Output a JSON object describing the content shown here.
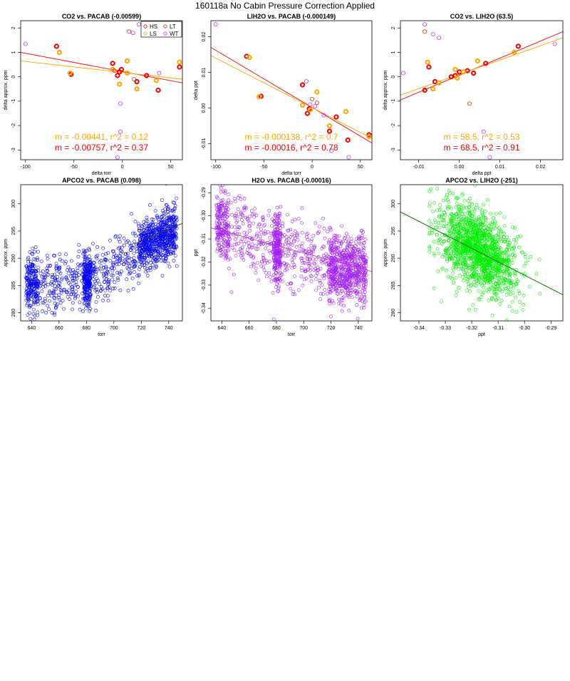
{
  "figure": {
    "title": "160118a   No Cabin Pressure Correction Applied"
  },
  "chart_data": [
    {
      "id": "p1",
      "type": "scatter",
      "title": "CO2 vs. PACAB (-0.00599)",
      "xlabel": "delta torr",
      "ylabel": "delta approx. ppm",
      "xlim": [
        -105,
        62
      ],
      "ylim": [
        -3.4,
        2.3
      ],
      "xticks": [
        -100,
        -50,
        0,
        50
      ],
      "yticks": [
        -3,
        -2,
        -1,
        0,
        1,
        2
      ],
      "legend": {
        "position": "top-right",
        "entries": [
          {
            "name": "HS",
            "color": "#dd0000"
          },
          {
            "name": "LT",
            "color": "#cc3300"
          },
          {
            "name": "LS",
            "color": "#ffa500"
          },
          {
            "name": "WT",
            "color": "#cc33ff"
          }
        ]
      },
      "series": [
        {
          "name": "HS",
          "color": "#ee0000",
          "thick": true,
          "points": [
            [
              -68,
              1.25
            ],
            [
              -53,
              0.1
            ],
            [
              -10,
              0.55
            ],
            [
              -5,
              0.05
            ],
            [
              -3,
              0.2
            ],
            [
              -1,
              0.3
            ],
            [
              15,
              -0.2
            ],
            [
              25,
              0.05
            ],
            [
              37,
              -0.55
            ],
            [
              59,
              0.4
            ]
          ]
        },
        {
          "name": "LS",
          "color": "#ffa500",
          "thick": true,
          "points": [
            [
              -65,
              1.0
            ],
            [
              -54,
              0.15
            ],
            [
              -10,
              0.3
            ],
            [
              -3,
              -0.3
            ],
            [
              5,
              0.65
            ],
            [
              5,
              0.15
            ],
            [
              15,
              -0.5
            ],
            [
              35,
              -0.15
            ],
            [
              59,
              0.6
            ]
          ]
        },
        {
          "name": "LT",
          "color": "#cc3300",
          "thick": false,
          "points": [
            [
              -8,
              0.25
            ],
            [
              7,
              1.85
            ],
            [
              12,
              -0.1
            ]
          ]
        },
        {
          "name": "WT",
          "color": "#cc33ff",
          "thick": false,
          "points": [
            [
              -100,
              1.35
            ],
            [
              -2,
              -1.1
            ],
            [
              -2,
              -2.25
            ],
            [
              -5,
              -3.3
            ],
            [
              11,
              1.8
            ],
            [
              17,
              2.15
            ],
            [
              38,
              0.15
            ]
          ]
        }
      ],
      "fits": [
        {
          "color": "#ff0000",
          "points": [
            [
              -105,
              1.0
            ],
            [
              62,
              -0.25
            ]
          ]
        },
        {
          "color": "#ffa500",
          "points": [
            [
              -105,
              0.65
            ],
            [
              62,
              -0.1
            ]
          ]
        }
      ],
      "annotations": [
        {
          "text": "m = -0.00441, r^2 = 0.12",
          "color": "#ffa500"
        },
        {
          "text": "m = -0.00757, r^2 = 0.37",
          "color": "#ee0000"
        }
      ]
    },
    {
      "id": "p2",
      "type": "scatter",
      "title": "LIH2O vs. PACAB (-0.000149)",
      "xlabel": "delta torr",
      "ylabel": "delta ppt",
      "xlim": [
        -105,
        62
      ],
      "ylim": [
        -0.0145,
        0.0245
      ],
      "xticks": [
        -100,
        -50,
        0,
        50
      ],
      "yticks": [
        -0.01,
        0,
        0.01,
        0.02
      ],
      "ytick_labels": [
        "-0.01",
        "0.00",
        "0.01",
        "0.02"
      ],
      "series": [
        {
          "name": "HS",
          "color": "#ee0000",
          "thick": true,
          "points": [
            [
              -68,
              0.0145
            ],
            [
              -53,
              0.0033
            ],
            [
              -10,
              0.0065
            ],
            [
              -5,
              -0.0015
            ],
            [
              -3,
              -0.0002
            ],
            [
              18,
              -0.0065
            ],
            [
              25,
              -0.0025
            ],
            [
              37,
              -0.009
            ],
            [
              59,
              -0.0075
            ]
          ]
        },
        {
          "name": "LS",
          "color": "#ffa500",
          "thick": true,
          "points": [
            [
              -65,
              0.0142
            ],
            [
              -55,
              0.0032
            ],
            [
              -10,
              0.0008
            ],
            [
              -2,
              -0.0005
            ],
            [
              5,
              0.0045
            ],
            [
              18,
              -0.005
            ],
            [
              35,
              -0.001
            ],
            [
              59,
              -0.008
            ]
          ]
        },
        {
          "name": "LT",
          "color": "#cc3300",
          "thick": false,
          "points": [
            [
              0,
              0.0025
            ],
            [
              5,
              0.0015
            ]
          ]
        },
        {
          "name": "WT",
          "color": "#cc33ff",
          "thick": false,
          "points": [
            [
              -100,
              0.0235
            ],
            [
              -6,
              0.0075
            ],
            [
              -2,
              0.001
            ],
            [
              3,
              0.0005
            ],
            [
              12,
              -0.002
            ],
            [
              20,
              -0.012
            ],
            [
              38,
              -0.0138
            ]
          ]
        }
      ],
      "fits": [
        {
          "color": "#ff0000",
          "points": [
            [
              -105,
              0.017
            ],
            [
              62,
              -0.0098
            ]
          ]
        },
        {
          "color": "#ffa500",
          "points": [
            [
              -105,
              0.0147
            ],
            [
              62,
              -0.0085
            ]
          ]
        }
      ],
      "annotations": [
        {
          "text": "m = -0.000138, r^2 = 0.7",
          "color": "#ffa500"
        },
        {
          "text": "m = -0.00016, r^2 = 0.78",
          "color": "#ee0000"
        }
      ]
    },
    {
      "id": "p3",
      "type": "scatter",
      "title": "CO2 vs. LIH2O (63.5)",
      "xlabel": "delta ppt",
      "ylabel": "delta approx. ppm",
      "xlim": [
        -0.0145,
        0.0255
      ],
      "ylim": [
        -3.4,
        2.3
      ],
      "xticks": [
        -0.01,
        0,
        0.01,
        0.02
      ],
      "xtick_labels": [
        "-0.01",
        "0.00",
        "0.01",
        "0.02"
      ],
      "yticks": [
        -3,
        -2,
        -1,
        0,
        1,
        2
      ],
      "series": [
        {
          "name": "HS",
          "color": "#ee0000",
          "thick": true,
          "points": [
            [
              -0.0085,
              -0.55
            ],
            [
              -0.0075,
              0.4
            ],
            [
              -0.006,
              -0.2
            ],
            [
              -0.002,
              0.0
            ],
            [
              -0.001,
              0.05
            ],
            [
              0.0,
              0.2
            ],
            [
              0.002,
              0.25
            ],
            [
              0.0035,
              0.15
            ],
            [
              0.0065,
              0.55
            ],
            [
              0.0145,
              1.25
            ]
          ]
        },
        {
          "name": "LS",
          "color": "#ffa500",
          "thick": true,
          "points": [
            [
              -0.0078,
              0.6
            ],
            [
              -0.0065,
              -0.5
            ],
            [
              -0.005,
              -0.25
            ],
            [
              -0.001,
              0.3
            ],
            [
              -0.0005,
              -0.05
            ],
            [
              0.001,
              0.2
            ],
            [
              0.0045,
              0.65
            ],
            [
              0.0135,
              1.0
            ]
          ]
        },
        {
          "name": "LT",
          "color": "#cc3300",
          "thick": false,
          "points": [
            [
              -0.0085,
              1.85
            ],
            [
              0.0025,
              -1.1
            ]
          ]
        },
        {
          "name": "WT",
          "color": "#cc33ff",
          "thick": false,
          "points": [
            [
              -0.0138,
              0.15
            ],
            [
              -0.0085,
              2.15
            ],
            [
              -0.0065,
              1.75
            ],
            [
              -0.005,
              1.6
            ],
            [
              0.006,
              -2.25
            ],
            [
              0.0075,
              -3.3
            ],
            [
              0.0235,
              1.35
            ]
          ]
        }
      ],
      "fits": [
        {
          "color": "#ff0000",
          "points": [
            [
              -0.0145,
              -0.95
            ],
            [
              0.0255,
              1.85
            ]
          ]
        },
        {
          "color": "#ffa500",
          "points": [
            [
              -0.0145,
              -0.75
            ],
            [
              0.0255,
              1.6
            ]
          ]
        }
      ],
      "annotations": [
        {
          "text": "m = 58.5, r^2 = 0.53",
          "color": "#ffa500"
        },
        {
          "text": "m = 68.5, r^2 = 0.91",
          "color": "#ee0000"
        }
      ]
    },
    {
      "id": "p4",
      "type": "scatter",
      "title": "APCO2 vs. PACAB (0.098)",
      "xlabel": "torr",
      "ylabel": "approx. ppm",
      "xlim": [
        632,
        750
      ],
      "ylim": [
        278.5,
        303.5
      ],
      "xticks": [
        640,
        660,
        680,
        700,
        720,
        740
      ],
      "yticks": [
        280,
        285,
        290,
        295,
        300
      ],
      "cloud": {
        "color": "#0000ee",
        "kind": "pacab",
        "n": 1500,
        "x_range": [
          636,
          746
        ],
        "y_at_x": [
          [
            636,
            285
          ],
          [
            680,
            286
          ],
          [
            700,
            288.5
          ],
          [
            720,
            292
          ],
          [
            746,
            295
          ]
        ],
        "y_spread": 2.6
      },
      "fits": [
        {
          "color": "#333333",
          "points": [
            [
              715,
              292.6
            ],
            [
              750,
              296.4
            ]
          ]
        }
      ]
    },
    {
      "id": "p5",
      "type": "scatter",
      "title": "H2O vs. PACAB (-0.00016)",
      "xlabel": "torr",
      "ylabel": "ppt",
      "xlim": [
        632,
        750
      ],
      "ylim": [
        -0.3455,
        -0.2865
      ],
      "xticks": [
        640,
        660,
        680,
        700,
        720,
        740
      ],
      "yticks": [
        -0.34,
        -0.33,
        -0.32,
        -0.31,
        -0.3,
        -0.29
      ],
      "ytick_labels": [
        "-0.34",
        "-0.33",
        "-0.32",
        "-0.31",
        "-0.30",
        "-0.29"
      ],
      "cloud": {
        "color": "#a020f0",
        "kind": "pacab",
        "n": 1500,
        "x_range": [
          636,
          746
        ],
        "y_at_x": [
          [
            636,
            -0.303
          ],
          [
            680,
            -0.314
          ],
          [
            700,
            -0.317
          ],
          [
            720,
            -0.322
          ],
          [
            746,
            -0.324
          ]
        ],
        "y_spread": 0.0075
      },
      "fits": [
        {
          "color": "#cc33cc",
          "points": [
            [
              632,
              -0.3052
            ],
            [
              750,
              -0.3241
            ]
          ]
        }
      ]
    },
    {
      "id": "p6",
      "type": "scatter",
      "title": "APCO2 vs. LIH2O (-251)",
      "xlabel": "ppt",
      "ylabel": "approx. ppm",
      "xlim": [
        -0.347,
        -0.2855
      ],
      "ylim": [
        278.5,
        303.5
      ],
      "xticks": [
        -0.34,
        -0.33,
        -0.32,
        -0.31,
        -0.3,
        -0.29
      ],
      "xtick_labels": [
        "-0.34",
        "-0.33",
        "-0.32",
        "-0.31",
        "-0.30",
        "-0.29"
      ],
      "yticks": [
        280,
        285,
        290,
        295,
        300
      ],
      "cloud": {
        "color": "#00ee00",
        "kind": "blob",
        "n": 1500,
        "x_range": [
          -0.336,
          -0.293
        ],
        "center": [
          -0.318,
          291.5
        ],
        "x_spread": 0.0075,
        "y_spread": 3.6,
        "slope": -251
      },
      "fits": [
        {
          "color": "#006400",
          "points": [
            [
              -0.347,
              298.5
            ],
            [
              -0.2855,
              283.3
            ]
          ]
        }
      ]
    }
  ]
}
